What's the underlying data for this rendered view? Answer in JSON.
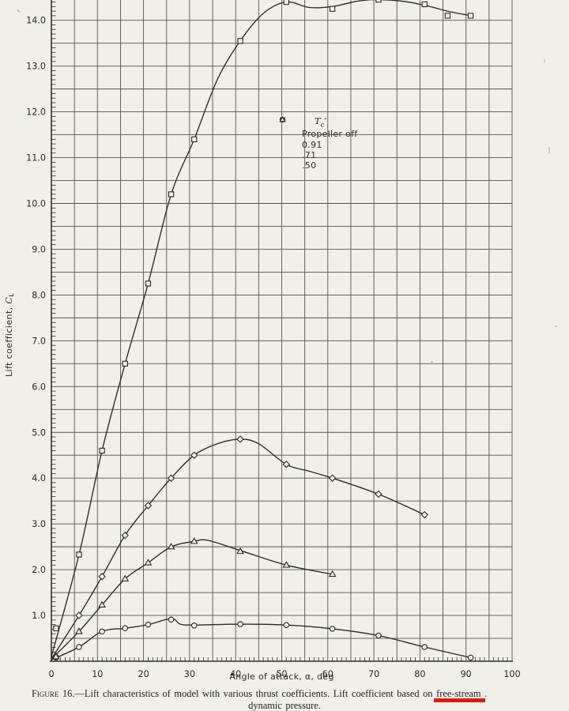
{
  "figure": {
    "caption_label": "Figure 16.",
    "caption_dash": "—",
    "caption_before": "Lift characteristics of model with various thrust coefficients.  Lift coefficient based on",
    "caption_highlight": "free-stream",
    "caption_after": " .",
    "caption_line2": "dynamic pressure.",
    "highlight_color": "#e0190e"
  },
  "chart_data": {
    "type": "line",
    "title": "",
    "xlabel": "Angle of attack, α, deg",
    "ylabel_text": "Lift coefficient, ",
    "ylabel_symbol": "C",
    "ylabel_sub": "L",
    "xlim": [
      0,
      100
    ],
    "ylim": [
      0,
      14.43
    ],
    "grid": {
      "on": true,
      "x_step": 5,
      "y_step": 0.5,
      "x_minor": 1,
      "y_minor": 0.1
    },
    "x_ticks": [
      0,
      10,
      20,
      30,
      40,
      50,
      60,
      70,
      80,
      90,
      100
    ],
    "x_tick_labels": [
      "0",
      "10",
      "20",
      "30",
      "40",
      "50",
      "60",
      "70",
      "80",
      "90",
      "100"
    ],
    "y_ticks": [
      1,
      2,
      3,
      4,
      5,
      6,
      7,
      8,
      9,
      10,
      11,
      12,
      13,
      14
    ],
    "y_tick_labels": [
      "1.0",
      "2.0",
      "3.0",
      "4.0",
      "5.0",
      "6.0",
      "7.0",
      "8.0",
      "9.0",
      "10.0",
      "11.0",
      "12.0",
      "13.0",
      "14.0"
    ],
    "legend": {
      "position": "upper-middle",
      "title_symbol": "T",
      "title_sub": "c",
      "title_suffix": "″",
      "items": [
        {
          "marker": "circle",
          "label": "Propeller off"
        },
        {
          "marker": "square",
          "label": "0.91"
        },
        {
          "marker": "diamond",
          "label": ".71"
        },
        {
          "marker": "triangle",
          "label": ".50"
        }
      ]
    },
    "series": [
      {
        "name": "Propeller off",
        "marker": "circle",
        "x": [
          1,
          6,
          11,
          16,
          21,
          26,
          31,
          41,
          51,
          61,
          71,
          81,
          91
        ],
        "y": [
          0.08,
          0.31,
          0.65,
          0.72,
          0.8,
          0.91,
          0.78,
          0.81,
          0.79,
          0.71,
          0.56,
          0.31,
          0.08
        ],
        "curve": [
          [
            0,
            0.03
          ],
          [
            6,
            0.31
          ],
          [
            11,
            0.65
          ],
          [
            16,
            0.72
          ],
          [
            21,
            0.8
          ],
          [
            26,
            0.93
          ],
          [
            28,
            0.81
          ],
          [
            31,
            0.79
          ],
          [
            41,
            0.81
          ],
          [
            51,
            0.79
          ],
          [
            61,
            0.71
          ],
          [
            71,
            0.56
          ],
          [
            81,
            0.31
          ],
          [
            91,
            0.08
          ]
        ]
      },
      {
        "name": "0.91",
        "marker": "square",
        "x": [
          1,
          6,
          11,
          16,
          21,
          26,
          31,
          41,
          51,
          61,
          71,
          81,
          86,
          91
        ],
        "y": [
          0.72,
          2.33,
          4.6,
          6.5,
          8.25,
          10.2,
          11.4,
          13.55,
          14.4,
          14.25,
          14.45,
          14.35,
          14.1,
          14.1
        ],
        "curve": [
          [
            0,
            0.1
          ],
          [
            6,
            2.33
          ],
          [
            11,
            4.6
          ],
          [
            16,
            6.5
          ],
          [
            21,
            8.25
          ],
          [
            26,
            10.2
          ],
          [
            31,
            11.4
          ],
          [
            36,
            12.7
          ],
          [
            41,
            13.55
          ],
          [
            46,
            14.15
          ],
          [
            51,
            14.4
          ],
          [
            56,
            14.28
          ],
          [
            61,
            14.3
          ],
          [
            66,
            14.41
          ],
          [
            70,
            14.45
          ],
          [
            76,
            14.42
          ],
          [
            81,
            14.33
          ],
          [
            86,
            14.2
          ],
          [
            91,
            14.1
          ]
        ]
      },
      {
        "name": ".71",
        "marker": "diamond",
        "x": [
          1,
          6,
          11,
          16,
          21,
          26,
          31,
          41,
          51,
          61,
          71,
          81
        ],
        "y": [
          0.1,
          1.0,
          1.85,
          2.75,
          3.4,
          4.0,
          4.5,
          4.85,
          4.3,
          4.0,
          3.65,
          3.2
        ],
        "curve": [
          [
            0,
            0.05
          ],
          [
            6,
            1.0
          ],
          [
            11,
            1.85
          ],
          [
            16,
            2.75
          ],
          [
            21,
            3.4
          ],
          [
            26,
            4.0
          ],
          [
            31,
            4.5
          ],
          [
            36,
            4.75
          ],
          [
            41,
            4.85
          ],
          [
            45,
            4.75
          ],
          [
            51,
            4.3
          ],
          [
            56,
            4.15
          ],
          [
            61,
            4.0
          ],
          [
            71,
            3.65
          ],
          [
            81,
            3.2
          ]
        ]
      },
      {
        "name": ".50",
        "marker": "triangle",
        "x": [
          1,
          6,
          11,
          16,
          21,
          26,
          31,
          41,
          51,
          61
        ],
        "y": [
          0.1,
          0.65,
          1.23,
          1.8,
          2.15,
          2.5,
          2.62,
          2.4,
          2.1,
          1.9
        ],
        "curve": [
          [
            0,
            0.05
          ],
          [
            6,
            0.65
          ],
          [
            11,
            1.23
          ],
          [
            16,
            1.8
          ],
          [
            21,
            2.15
          ],
          [
            26,
            2.5
          ],
          [
            31,
            2.62
          ],
          [
            34,
            2.64
          ],
          [
            41,
            2.42
          ],
          [
            51,
            2.1
          ],
          [
            61,
            1.9
          ]
        ]
      }
    ]
  }
}
